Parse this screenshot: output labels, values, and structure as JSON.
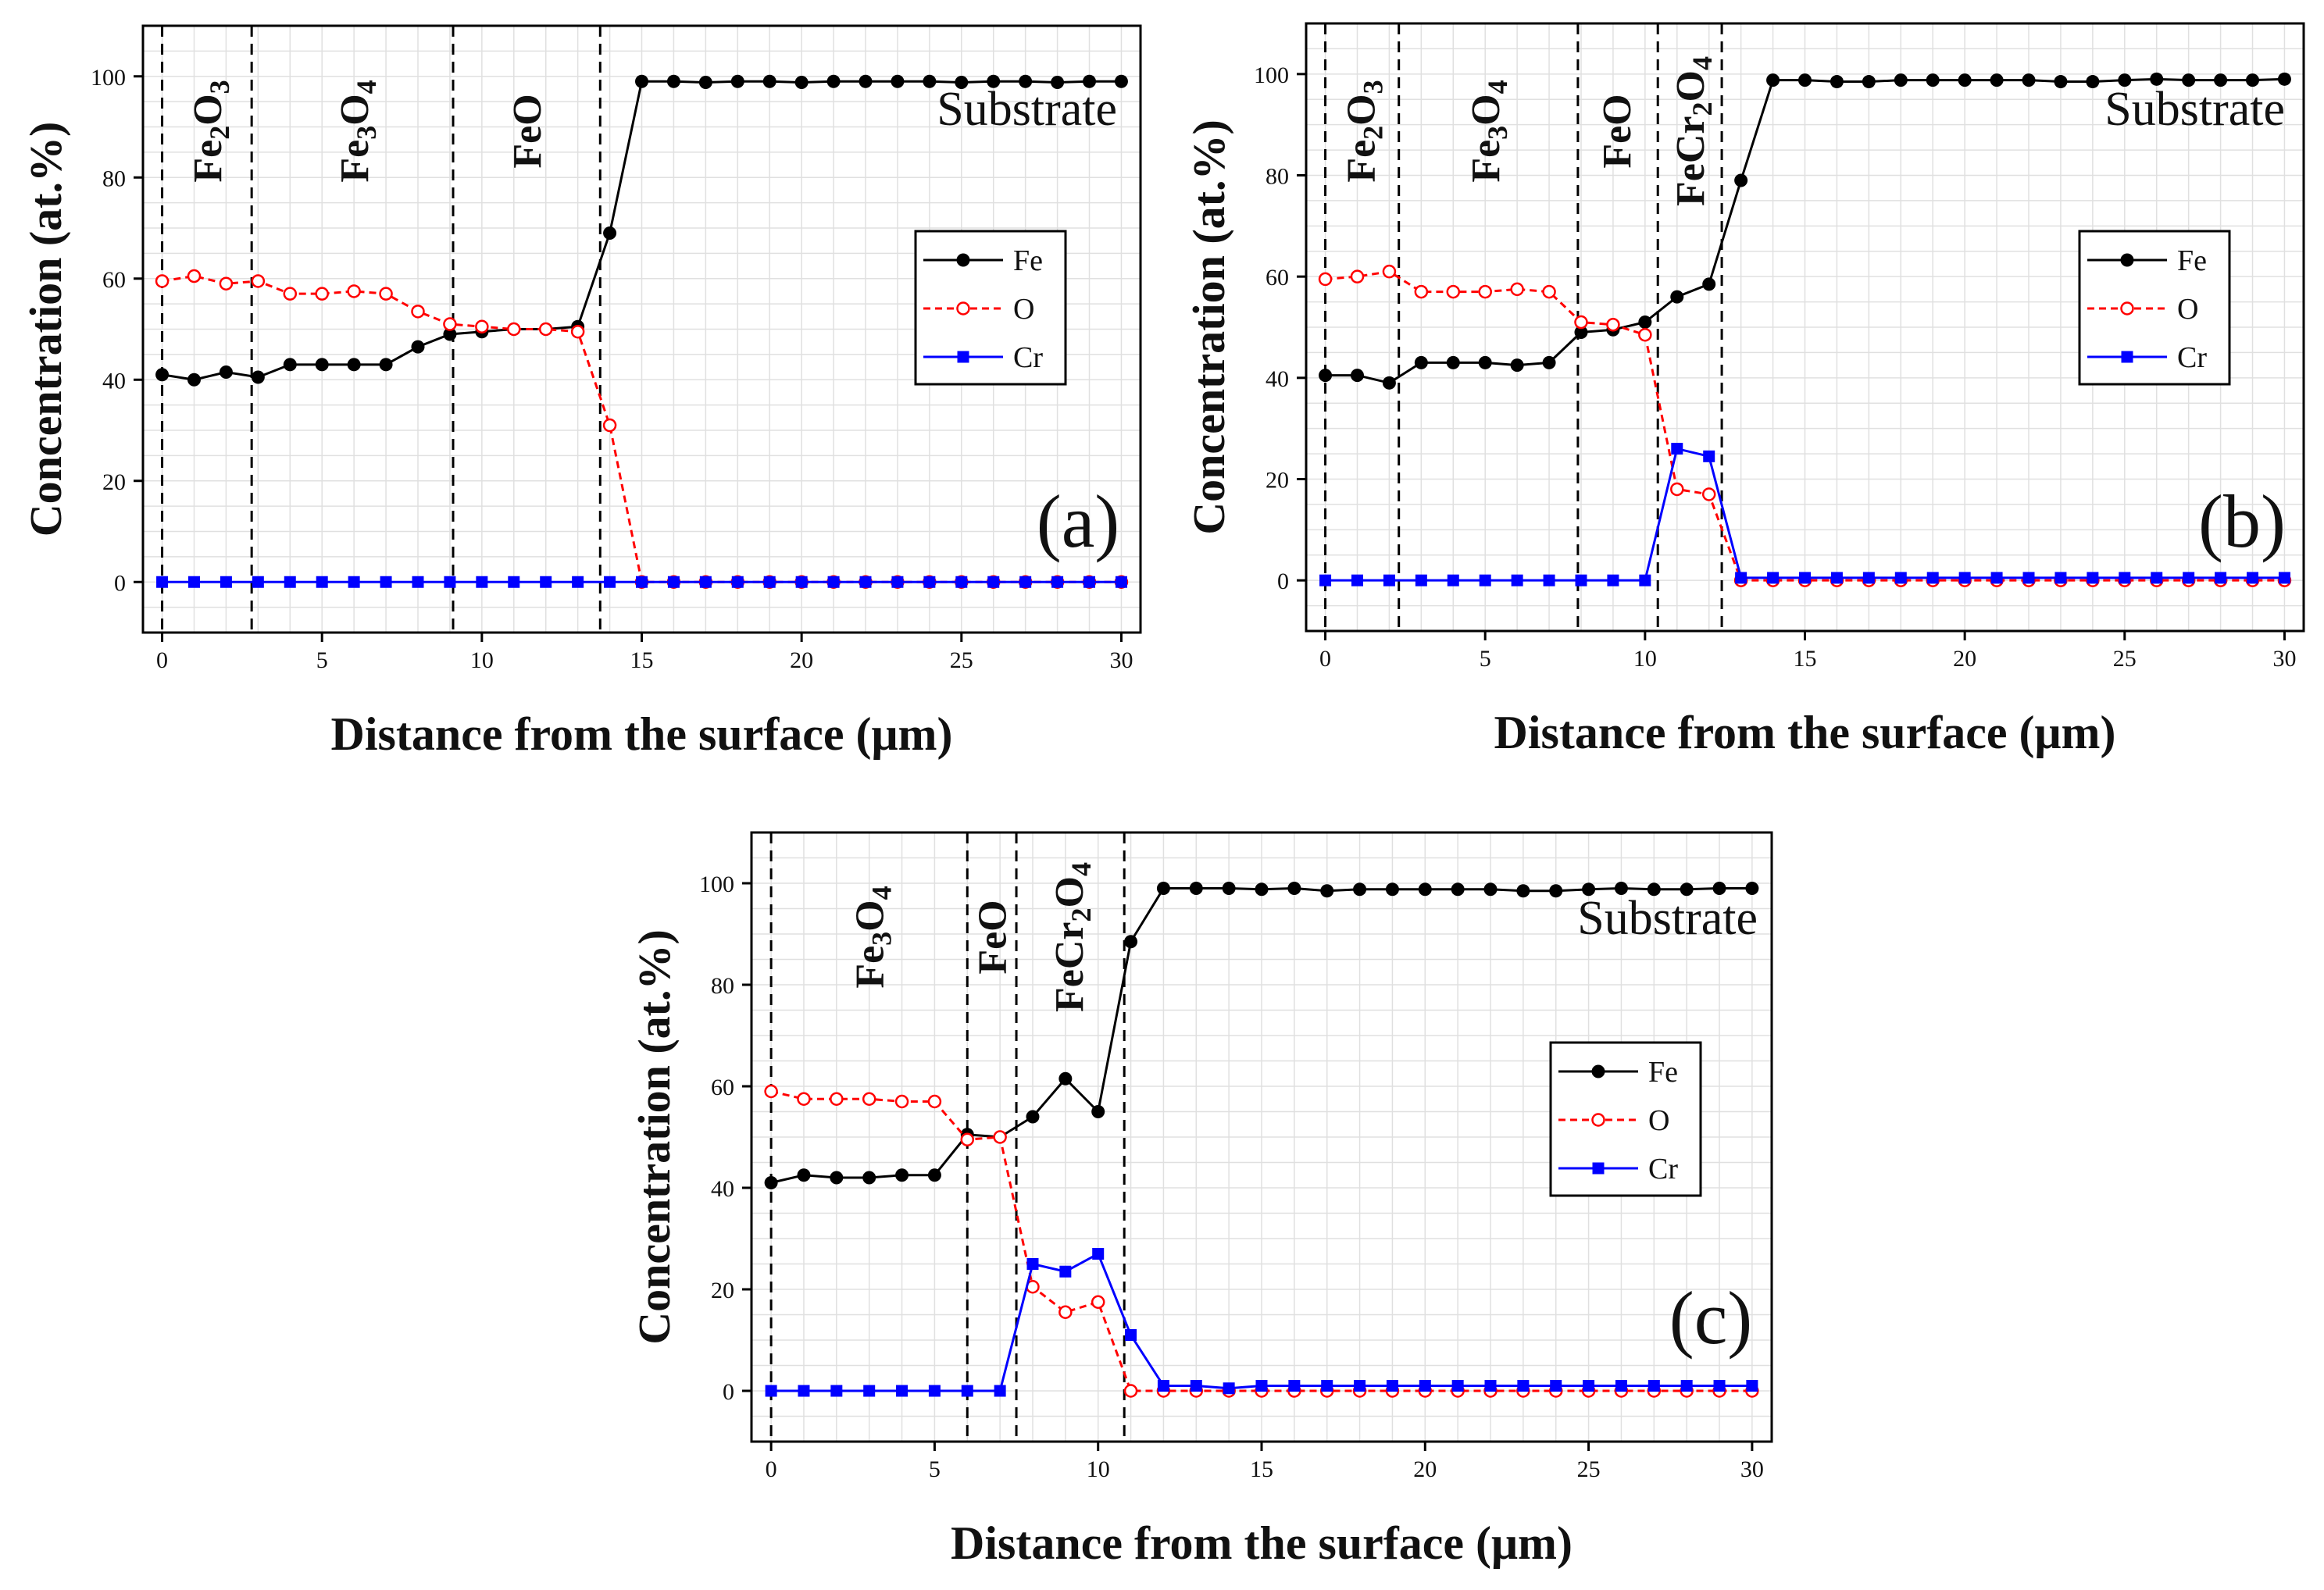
{
  "figure": {
    "colors": {
      "Fe": "#000000",
      "O": "#ff0000",
      "Cr": "#0000ff",
      "grid": "#e0e0e0"
    }
  },
  "chart_data": [
    {
      "type": "line",
      "panel": "(a)",
      "xlabel": "Distance from the surface (μm)",
      "ylabel": "Concentration (at.%)",
      "xlim": [
        -0.6,
        30.6
      ],
      "ylim": [
        -10,
        110
      ],
      "xticks": [
        0,
        5,
        10,
        15,
        20,
        25,
        30
      ],
      "yticks": [
        0,
        20,
        40,
        60,
        80,
        100
      ],
      "x": [
        0,
        1,
        2,
        3,
        4,
        5,
        6,
        7,
        8,
        9,
        10,
        11,
        12,
        13,
        14,
        15,
        16,
        17,
        18,
        19,
        20,
        21,
        22,
        23,
        24,
        25,
        26,
        27,
        28,
        29,
        30
      ],
      "series": [
        {
          "name": "Fe",
          "style": "solid",
          "marker": "filled-circle",
          "values": [
            41,
            40,
            41.5,
            40.5,
            43,
            43,
            43,
            43,
            46.5,
            49,
            49.5,
            50,
            50,
            50.5,
            69,
            99,
            99,
            98.8,
            99,
            99,
            98.8,
            99,
            99,
            99,
            99,
            98.8,
            99,
            99,
            98.8,
            99,
            99
          ]
        },
        {
          "name": "O",
          "style": "dashed",
          "marker": "open-circle",
          "values": [
            59.5,
            60.5,
            59,
            59.5,
            57,
            57,
            57.5,
            57,
            53.5,
            51,
            50.5,
            50,
            50,
            49.5,
            31,
            0,
            0,
            0,
            0,
            0,
            0,
            0,
            0,
            0,
            0,
            0,
            0,
            0,
            0,
            0,
            0
          ]
        },
        {
          "name": "Cr",
          "style": "solid",
          "marker": "filled-square",
          "values": [
            0,
            0,
            0,
            0,
            0,
            0,
            0,
            0,
            0,
            0,
            0,
            0,
            0,
            0,
            0,
            0,
            0,
            0,
            0,
            0,
            0,
            0,
            0,
            0,
            0,
            0,
            0,
            0,
            0,
            0,
            0
          ]
        }
      ],
      "boundaries": [
        0,
        2.8,
        9.1,
        13.7
      ],
      "layers": [
        {
          "main": "Fe",
          "subs": [
            "2",
            "3"
          ],
          "parts": [
            "O"
          ],
          "x": 1.4
        },
        {
          "main": "Fe",
          "subs": [
            "3",
            "4"
          ],
          "parts": [
            "O"
          ],
          "x": 6.0
        },
        {
          "main": "FeO",
          "subs": [],
          "parts": [],
          "x": 11.4
        }
      ],
      "annotation": "Substrate",
      "legend": [
        "Fe",
        "O",
        "Cr"
      ]
    },
    {
      "type": "line",
      "panel": "(b)",
      "xlabel": "Distance from the surface (μm)",
      "ylabel": "Concentration (at.%)",
      "xlim": [
        -0.6,
        30.6
      ],
      "ylim": [
        -10,
        110
      ],
      "xticks": [
        0,
        5,
        10,
        15,
        20,
        25,
        30
      ],
      "yticks": [
        0,
        20,
        40,
        60,
        80,
        100
      ],
      "x": [
        0,
        1,
        2,
        3,
        4,
        5,
        6,
        7,
        8,
        9,
        10,
        11,
        12,
        13,
        14,
        15,
        16,
        17,
        18,
        19,
        20,
        21,
        22,
        23,
        24,
        25,
        26,
        27,
        28,
        29,
        30
      ],
      "series": [
        {
          "name": "Fe",
          "style": "solid",
          "marker": "filled-circle",
          "values": [
            40.5,
            40.5,
            39,
            43,
            43,
            43,
            42.5,
            43,
            49,
            49.5,
            51,
            56,
            58.5,
            79,
            98.8,
            98.8,
            98.5,
            98.5,
            98.8,
            98.8,
            98.8,
            98.8,
            98.8,
            98.5,
            98.5,
            98.8,
            99,
            98.8,
            98.8,
            98.8,
            99
          ]
        },
        {
          "name": "O",
          "style": "dashed",
          "marker": "open-circle",
          "values": [
            59.5,
            60,
            61,
            57,
            57,
            57,
            57.5,
            57,
            51,
            50.5,
            48.5,
            18,
            17,
            0,
            0,
            0,
            0,
            0,
            0,
            0,
            0,
            0,
            0,
            0,
            0,
            0,
            0,
            0,
            0,
            0,
            0
          ]
        },
        {
          "name": "Cr",
          "style": "solid",
          "marker": "filled-square",
          "values": [
            0,
            0,
            0,
            0,
            0,
            0,
            0,
            0,
            0,
            0,
            0,
            26,
            24.5,
            0.5,
            0.5,
            0.5,
            0.5,
            0.5,
            0.5,
            0.5,
            0.5,
            0.5,
            0.5,
            0.5,
            0.5,
            0.5,
            0.5,
            0.5,
            0.5,
            0.5,
            0.5
          ]
        }
      ],
      "boundaries": [
        0,
        2.3,
        7.9,
        10.4,
        12.4
      ],
      "layers": [
        {
          "main": "Fe",
          "subs": [
            "2",
            "3"
          ],
          "parts": [
            "O"
          ],
          "x": 1.1
        },
        {
          "main": "Fe",
          "subs": [
            "3",
            "4"
          ],
          "parts": [
            "O"
          ],
          "x": 5.0
        },
        {
          "main": "FeO",
          "subs": [],
          "parts": [],
          "x": 9.1
        },
        {
          "main": "FeCr",
          "subs": [
            "2",
            "4"
          ],
          "parts": [
            "O"
          ],
          "x": 11.4
        }
      ],
      "annotation": "Substrate",
      "legend": [
        "Fe",
        "O",
        "Cr"
      ]
    },
    {
      "type": "line",
      "panel": "(c)",
      "xlabel": "Distance from the surface (μm)",
      "ylabel": "Concentration (at.%)",
      "xlim": [
        -0.6,
        30.6
      ],
      "ylim": [
        -10,
        110
      ],
      "xticks": [
        0,
        5,
        10,
        15,
        20,
        25,
        30
      ],
      "yticks": [
        0,
        20,
        40,
        60,
        80,
        100
      ],
      "x": [
        0,
        1,
        2,
        3,
        4,
        5,
        6,
        7,
        8,
        9,
        10,
        11,
        12,
        13,
        14,
        15,
        16,
        17,
        18,
        19,
        20,
        21,
        22,
        23,
        24,
        25,
        26,
        27,
        28,
        29,
        30
      ],
      "series": [
        {
          "name": "Fe",
          "style": "solid",
          "marker": "filled-circle",
          "values": [
            41,
            42.5,
            42,
            42,
            42.5,
            42.5,
            50.5,
            50,
            54,
            61.5,
            55,
            88.5,
            99,
            99,
            99,
            98.8,
            99,
            98.5,
            98.8,
            98.8,
            98.8,
            98.8,
            98.8,
            98.5,
            98.5,
            98.8,
            99,
            98.8,
            98.8,
            99,
            99
          ]
        },
        {
          "name": "O",
          "style": "dashed",
          "marker": "open-circle",
          "values": [
            59,
            57.5,
            57.5,
            57.5,
            57,
            57,
            49.5,
            50,
            20.5,
            15.5,
            17.5,
            0,
            0,
            0,
            0,
            0,
            0,
            0,
            0,
            0,
            0,
            0,
            0,
            0,
            0,
            0,
            0,
            0,
            0,
            0,
            0
          ]
        },
        {
          "name": "Cr",
          "style": "solid",
          "marker": "filled-square",
          "values": [
            0,
            0,
            0,
            0,
            0,
            0,
            0,
            0,
            25,
            23.5,
            27,
            11,
            1,
            1,
            0.5,
            1,
            1,
            1,
            1,
            1,
            1,
            1,
            1,
            1,
            1,
            1,
            1,
            1,
            1,
            1,
            1
          ]
        }
      ],
      "boundaries": [
        0,
        6.0,
        7.5,
        10.8
      ],
      "layers": [
        {
          "main": "Fe",
          "subs": [
            "3",
            "4"
          ],
          "parts": [
            "O"
          ],
          "x": 3.0
        },
        {
          "main": "FeO",
          "subs": [],
          "parts": [],
          "x": 6.75
        },
        {
          "main": "FeCr",
          "subs": [
            "2",
            "4"
          ],
          "parts": [
            "O"
          ],
          "x": 9.1
        }
      ],
      "annotation": "Substrate",
      "legend": [
        "Fe",
        "O",
        "Cr"
      ]
    }
  ]
}
